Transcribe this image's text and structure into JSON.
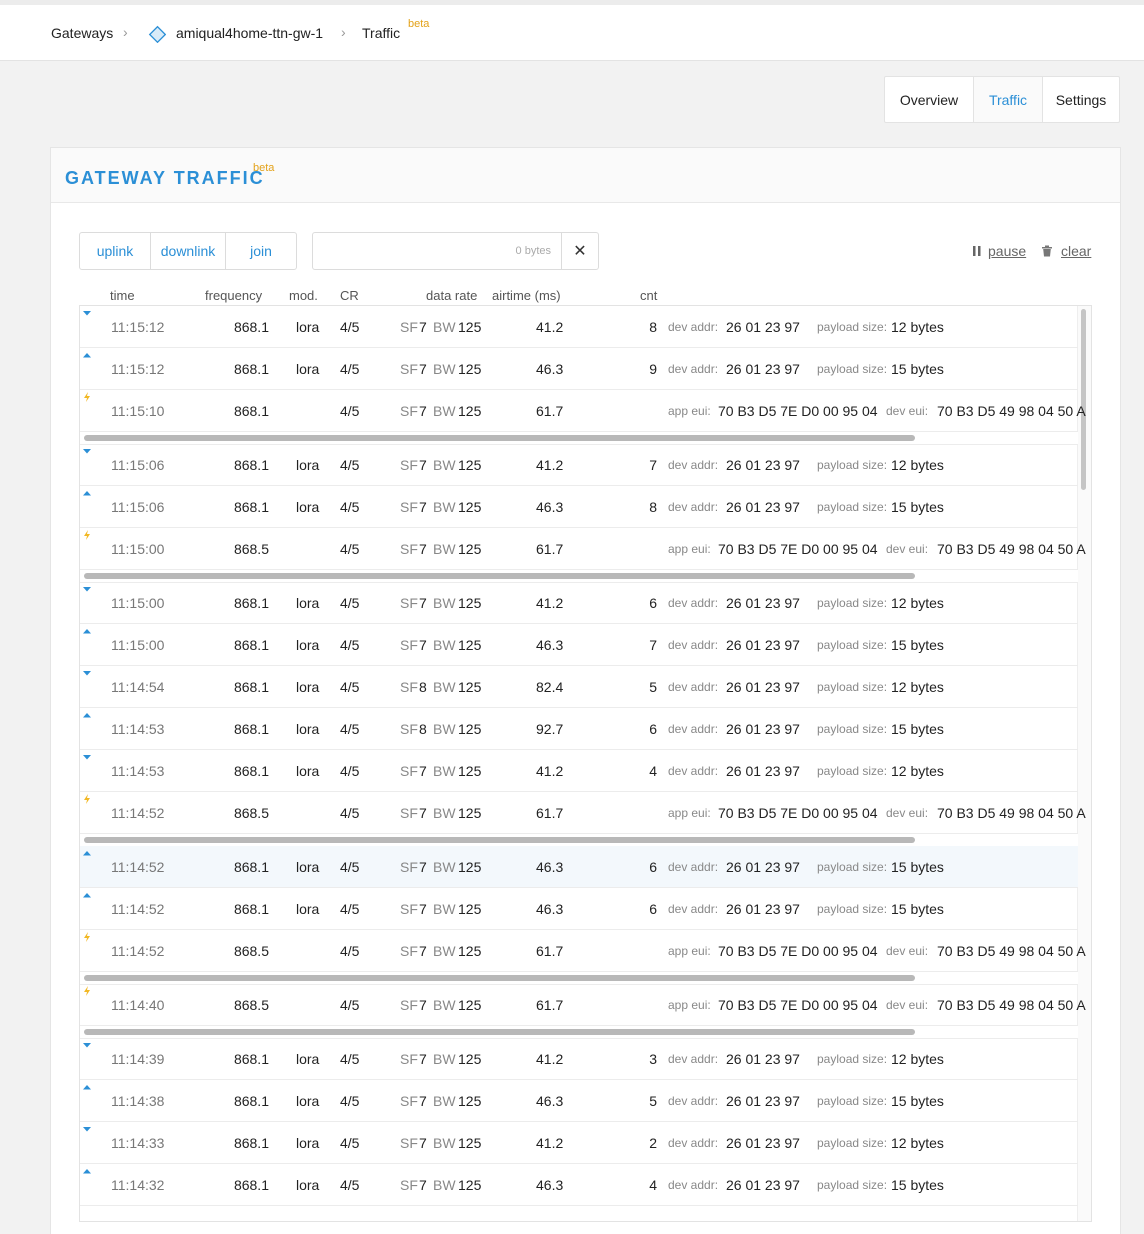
{
  "breadcrumb": {
    "gateways": "Gateways",
    "gateway_id": "amiqual4home-ttn-gw-1",
    "traffic": "Traffic",
    "beta": "beta"
  },
  "tabs": [
    "Overview",
    "Traffic",
    "Settings"
  ],
  "panel": {
    "title": "GATEWAY TRAFFIC",
    "beta": "beta"
  },
  "filters": [
    "uplink",
    "downlink",
    "join"
  ],
  "search": {
    "bytes": "0 bytes",
    "clear_symbol": "✕"
  },
  "controls": {
    "pause": "pause",
    "clear": "clear"
  },
  "columns": [
    "time",
    "frequency",
    "mod.",
    "CR",
    "data rate",
    "airtime (ms)",
    "cnt"
  ],
  "labels": {
    "sf": "SF",
    "bw": "BW",
    "devaddr": "dev addr:",
    "payload": "payload size:",
    "appeui": "app eui:",
    "deveui": "dev eui:"
  },
  "rows": [
    {
      "dir": "down",
      "time": "11:15:12",
      "freq": "868.1",
      "mod": "lora",
      "cr": "4/5",
      "sf": "7",
      "bw": "125",
      "air": "41.2",
      "cnt": "8",
      "devaddr": "26 01 23 97",
      "payload": "12 bytes"
    },
    {
      "dir": "up",
      "time": "11:15:12",
      "freq": "868.1",
      "mod": "lora",
      "cr": "4/5",
      "sf": "7",
      "bw": "125",
      "air": "46.3",
      "cnt": "9",
      "devaddr": "26 01 23 97",
      "payload": "15 bytes"
    },
    {
      "dir": "join",
      "time": "11:15:10",
      "freq": "868.1",
      "mod": "",
      "cr": "4/5",
      "sf": "7",
      "bw": "125",
      "air": "61.7",
      "appeui": "70 B3 D5 7E D0 00 95 04",
      "deveui": "70 B3 D5 49 98 04 50 A"
    },
    {
      "scrollbar": true
    },
    {
      "dir": "down",
      "time": "11:15:06",
      "freq": "868.1",
      "mod": "lora",
      "cr": "4/5",
      "sf": "7",
      "bw": "125",
      "air": "41.2",
      "cnt": "7",
      "devaddr": "26 01 23 97",
      "payload": "12 bytes"
    },
    {
      "dir": "up",
      "time": "11:15:06",
      "freq": "868.1",
      "mod": "lora",
      "cr": "4/5",
      "sf": "7",
      "bw": "125",
      "air": "46.3",
      "cnt": "8",
      "devaddr": "26 01 23 97",
      "payload": "15 bytes"
    },
    {
      "dir": "join",
      "time": "11:15:00",
      "freq": "868.5",
      "mod": "",
      "cr": "4/5",
      "sf": "7",
      "bw": "125",
      "air": "61.7",
      "appeui": "70 B3 D5 7E D0 00 95 04",
      "deveui": "70 B3 D5 49 98 04 50 A"
    },
    {
      "scrollbar": true
    },
    {
      "dir": "down",
      "time": "11:15:00",
      "freq": "868.1",
      "mod": "lora",
      "cr": "4/5",
      "sf": "7",
      "bw": "125",
      "air": "41.2",
      "cnt": "6",
      "devaddr": "26 01 23 97",
      "payload": "12 bytes"
    },
    {
      "dir": "up",
      "time": "11:15:00",
      "freq": "868.1",
      "mod": "lora",
      "cr": "4/5",
      "sf": "7",
      "bw": "125",
      "air": "46.3",
      "cnt": "7",
      "devaddr": "26 01 23 97",
      "payload": "15 bytes"
    },
    {
      "dir": "down",
      "time": "11:14:54",
      "freq": "868.1",
      "mod": "lora",
      "cr": "4/5",
      "sf": "8",
      "bw": "125",
      "air": "82.4",
      "cnt": "5",
      "devaddr": "26 01 23 97",
      "payload": "12 bytes"
    },
    {
      "dir": "up",
      "time": "11:14:53",
      "freq": "868.1",
      "mod": "lora",
      "cr": "4/5",
      "sf": "8",
      "bw": "125",
      "air": "92.7",
      "cnt": "6",
      "devaddr": "26 01 23 97",
      "payload": "15 bytes"
    },
    {
      "dir": "down",
      "time": "11:14:53",
      "freq": "868.1",
      "mod": "lora",
      "cr": "4/5",
      "sf": "7",
      "bw": "125",
      "air": "41.2",
      "cnt": "4",
      "devaddr": "26 01 23 97",
      "payload": "12 bytes"
    },
    {
      "dir": "join",
      "time": "11:14:52",
      "freq": "868.5",
      "mod": "",
      "cr": "4/5",
      "sf": "7",
      "bw": "125",
      "air": "61.7",
      "appeui": "70 B3 D5 7E D0 00 95 04",
      "deveui": "70 B3 D5 49 98 04 50 A"
    },
    {
      "scrollbar": true
    },
    {
      "dir": "up",
      "time": "11:14:52",
      "freq": "868.1",
      "mod": "lora",
      "cr": "4/5",
      "sf": "7",
      "bw": "125",
      "air": "46.3",
      "cnt": "6",
      "devaddr": "26 01 23 97",
      "payload": "15 bytes",
      "highlight": true
    },
    {
      "dir": "up",
      "time": "11:14:52",
      "freq": "868.1",
      "mod": "lora",
      "cr": "4/5",
      "sf": "7",
      "bw": "125",
      "air": "46.3",
      "cnt": "6",
      "devaddr": "26 01 23 97",
      "payload": "15 bytes"
    },
    {
      "dir": "join",
      "time": "11:14:52",
      "freq": "868.5",
      "mod": "",
      "cr": "4/5",
      "sf": "7",
      "bw": "125",
      "air": "61.7",
      "appeui": "70 B3 D5 7E D0 00 95 04",
      "deveui": "70 B3 D5 49 98 04 50 A"
    },
    {
      "scrollbar": true
    },
    {
      "dir": "join",
      "time": "11:14:40",
      "freq": "868.5",
      "mod": "",
      "cr": "4/5",
      "sf": "7",
      "bw": "125",
      "air": "61.7",
      "appeui": "70 B3 D5 7E D0 00 95 04",
      "deveui": "70 B3 D5 49 98 04 50 A"
    },
    {
      "scrollbar": true
    },
    {
      "dir": "down",
      "time": "11:14:39",
      "freq": "868.1",
      "mod": "lora",
      "cr": "4/5",
      "sf": "7",
      "bw": "125",
      "air": "41.2",
      "cnt": "3",
      "devaddr": "26 01 23 97",
      "payload": "12 bytes"
    },
    {
      "dir": "up",
      "time": "11:14:38",
      "freq": "868.1",
      "mod": "lora",
      "cr": "4/5",
      "sf": "7",
      "bw": "125",
      "air": "46.3",
      "cnt": "5",
      "devaddr": "26 01 23 97",
      "payload": "15 bytes"
    },
    {
      "dir": "down",
      "time": "11:14:33",
      "freq": "868.1",
      "mod": "lora",
      "cr": "4/5",
      "sf": "7",
      "bw": "125",
      "air": "41.2",
      "cnt": "2",
      "devaddr": "26 01 23 97",
      "payload": "12 bytes"
    },
    {
      "dir": "up",
      "time": "11:14:32",
      "freq": "868.1",
      "mod": "lora",
      "cr": "4/5",
      "sf": "7",
      "bw": "125",
      "air": "46.3",
      "cnt": "4",
      "devaddr": "26 01 23 97",
      "payload": "15 bytes"
    }
  ],
  "colors": {
    "accent": "#2b8fd6",
    "beta": "#e3a21a",
    "join": "#f2b824"
  }
}
